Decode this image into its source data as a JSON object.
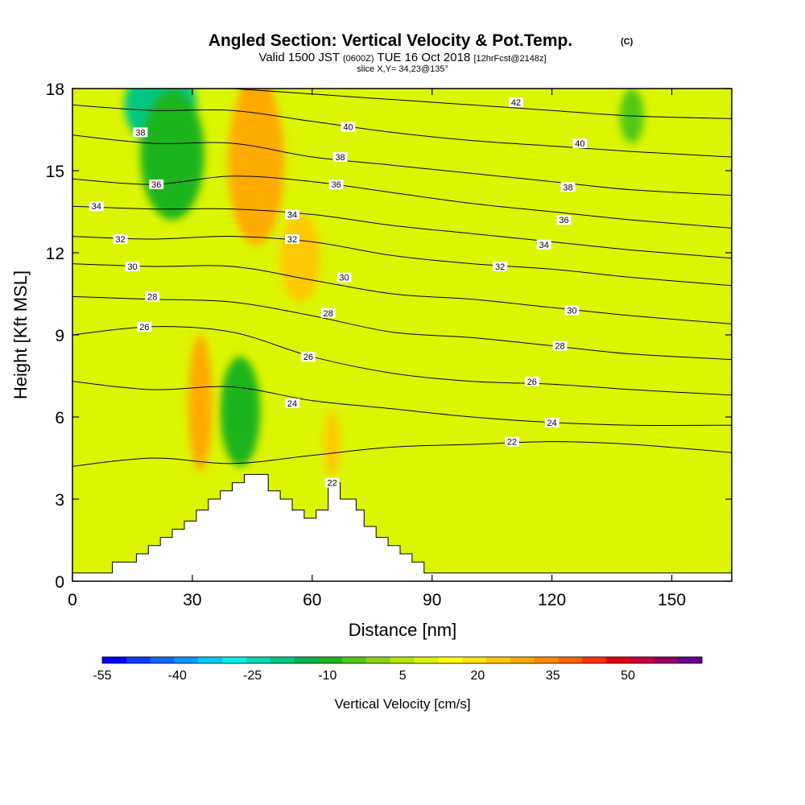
{
  "figure": {
    "title": "Angled Section: Vertical Velocity & Pot.Temp.",
    "title_suffix": "(C)",
    "valid_prefix": "Valid 1500 JST",
    "valid_z": "(0600Z)",
    "valid_date": "TUE 16 Oct 2018",
    "forecast": "[12hrFcst@2148z]",
    "slice": "slice X,Y= 34,23@135°"
  },
  "chart_data": {
    "type": "heatmap",
    "xlabel": "Distance [nm]",
    "ylabel": "Height [Kft MSL]",
    "xlim": [
      0,
      165
    ],
    "ylim": [
      0,
      18
    ],
    "xticks": [
      0,
      30,
      60,
      90,
      120,
      150
    ],
    "yticks": [
      0,
      3,
      6,
      9,
      12,
      15,
      18
    ],
    "colorbar": {
      "label": "Vertical Velocity [cm/s]",
      "tick_labels": [
        "-55",
        "-40",
        "-25",
        "-10",
        "5",
        "20",
        "35",
        "50"
      ],
      "levels": [
        -55,
        -50,
        -45,
        -40,
        -35,
        -30,
        -25,
        -20,
        -15,
        -10,
        -5,
        0,
        5,
        10,
        15,
        20,
        25,
        30,
        35,
        40,
        45,
        50,
        55,
        60
      ],
      "colors": [
        "#0000ff",
        "#0a3cff",
        "#1464ff",
        "#0a96ff",
        "#00c8ff",
        "#00f0e6",
        "#00dcb4",
        "#00c882",
        "#00b450",
        "#1eb41e",
        "#50c814",
        "#8cd214",
        "#b4e600",
        "#dcf500",
        "#ffff00",
        "#ffe600",
        "#ffc800",
        "#ffaa00",
        "#ff8c00",
        "#ff6400",
        "#ff3200",
        "#e60014",
        "#c8003c",
        "#960064",
        "#64008c"
      ]
    },
    "theta_contours": [
      {
        "value": 22,
        "x": [
          0,
          20,
          40,
          60,
          80,
          100,
          120,
          140,
          165
        ],
        "y": [
          4.2,
          4.5,
          4.3,
          4.6,
          4.9,
          5.0,
          5.1,
          5.0,
          4.7
        ],
        "labels": [
          {
            "x": 65,
            "y": 3.6
          },
          {
            "x": 110,
            "y": 5.1
          }
        ]
      },
      {
        "value": 24,
        "x": [
          0,
          20,
          40,
          60,
          80,
          100,
          120,
          140,
          165
        ],
        "y": [
          7.3,
          7.0,
          7.1,
          6.6,
          6.3,
          6.0,
          5.8,
          5.7,
          5.7
        ],
        "labels": [
          {
            "x": 55,
            "y": 6.5
          },
          {
            "x": 120,
            "y": 5.8
          }
        ]
      },
      {
        "value": 26,
        "x": [
          0,
          20,
          40,
          60,
          80,
          100,
          120,
          140,
          165
        ],
        "y": [
          9.0,
          9.3,
          9.1,
          8.2,
          7.6,
          7.3,
          7.2,
          7.0,
          6.8
        ],
        "labels": [
          {
            "x": 18,
            "y": 9.3
          },
          {
            "x": 59,
            "y": 8.2
          },
          {
            "x": 115,
            "y": 7.3
          }
        ]
      },
      {
        "value": 28,
        "x": [
          0,
          20,
          40,
          60,
          80,
          100,
          120,
          140,
          165
        ],
        "y": [
          10.4,
          10.3,
          10.2,
          9.7,
          9.1,
          8.9,
          8.6,
          8.3,
          8.1
        ],
        "labels": [
          {
            "x": 20,
            "y": 10.4
          },
          {
            "x": 64,
            "y": 9.8
          },
          {
            "x": 122,
            "y": 8.6
          }
        ]
      },
      {
        "value": 30,
        "x": [
          0,
          20,
          40,
          60,
          80,
          100,
          120,
          140,
          165
        ],
        "y": [
          11.6,
          11.5,
          11.5,
          11.0,
          10.5,
          10.3,
          10.0,
          9.7,
          9.4
        ],
        "labels": [
          {
            "x": 15,
            "y": 11.5
          },
          {
            "x": 68,
            "y": 11.1
          },
          {
            "x": 125,
            "y": 9.9
          }
        ]
      },
      {
        "value": 32,
        "x": [
          0,
          20,
          40,
          60,
          80,
          100,
          120,
          140,
          165
        ],
        "y": [
          12.6,
          12.5,
          12.6,
          12.4,
          11.9,
          11.6,
          11.4,
          11.1,
          10.8
        ],
        "labels": [
          {
            "x": 12,
            "y": 12.5
          },
          {
            "x": 55,
            "y": 12.5
          },
          {
            "x": 107,
            "y": 11.5
          }
        ]
      },
      {
        "value": 34,
        "x": [
          0,
          20,
          40,
          60,
          80,
          100,
          120,
          140,
          165
        ],
        "y": [
          13.7,
          13.6,
          13.6,
          13.4,
          13.0,
          12.7,
          12.4,
          12.1,
          11.8
        ],
        "labels": [
          {
            "x": 6,
            "y": 13.7
          },
          {
            "x": 55,
            "y": 13.4
          },
          {
            "x": 118,
            "y": 12.3
          }
        ]
      },
      {
        "value": 36,
        "x": [
          0,
          20,
          40,
          60,
          80,
          100,
          120,
          140,
          165
        ],
        "y": [
          14.7,
          14.5,
          14.8,
          14.6,
          14.2,
          13.8,
          13.5,
          13.2,
          12.9
        ],
        "labels": [
          {
            "x": 21,
            "y": 14.5
          },
          {
            "x": 66,
            "y": 14.5
          },
          {
            "x": 123,
            "y": 13.2
          }
        ]
      },
      {
        "value": 38,
        "x": [
          0,
          20,
          40,
          60,
          80,
          100,
          120,
          140,
          165
        ],
        "y": [
          16.3,
          16.0,
          16.0,
          15.5,
          15.2,
          14.9,
          14.6,
          14.3,
          14.1
        ],
        "labels": [
          {
            "x": 17,
            "y": 16.4
          },
          {
            "x": 67,
            "y": 15.5
          },
          {
            "x": 124,
            "y": 14.4
          }
        ]
      },
      {
        "value": 40,
        "x": [
          0,
          20,
          40,
          60,
          80,
          100,
          120,
          140,
          165
        ],
        "y": [
          17.4,
          17.2,
          17.2,
          16.8,
          16.4,
          16.1,
          15.9,
          15.7,
          15.5
        ],
        "labels": [
          {
            "x": 69,
            "y": 16.6
          },
          {
            "x": 127,
            "y": 16.0
          }
        ]
      },
      {
        "value": 42,
        "x": [
          40,
          60,
          80,
          100,
          120,
          140,
          165
        ],
        "y": [
          18.0,
          17.8,
          17.6,
          17.4,
          17.2,
          17.0,
          16.9
        ],
        "labels": [
          {
            "x": 111,
            "y": 17.5
          }
        ]
      }
    ],
    "terrain": {
      "x": [
        0,
        10,
        10,
        16,
        16,
        19,
        19,
        22,
        22,
        25,
        25,
        28,
        28,
        31,
        31,
        34,
        34,
        37,
        37,
        40,
        40,
        43,
        43,
        49,
        49,
        52,
        52,
        55,
        55,
        58,
        58,
        61,
        61,
        64,
        64,
        67,
        67,
        71,
        71,
        73,
        73,
        76,
        76,
        79,
        79,
        82,
        82,
        85,
        85,
        88,
        88,
        91,
        91,
        165
      ],
      "y": [
        0.3,
        0.3,
        0.7,
        0.7,
        1.0,
        1.0,
        1.3,
        1.3,
        1.6,
        1.6,
        1.9,
        1.9,
        2.2,
        2.2,
        2.6,
        2.6,
        3.0,
        3.0,
        3.3,
        3.3,
        3.6,
        3.6,
        3.9,
        3.9,
        3.3,
        3.3,
        3.0,
        3.0,
        2.6,
        2.6,
        2.3,
        2.3,
        2.6,
        2.6,
        3.6,
        3.6,
        3.0,
        3.0,
        2.6,
        2.6,
        2.0,
        2.0,
        1.6,
        1.6,
        1.3,
        1.3,
        1.0,
        1.0,
        0.7,
        0.7,
        0.3,
        0.3,
        0.3,
        0.3
      ]
    },
    "velocity_features": [
      {
        "x": 22,
        "y": 17.4,
        "rx": 9,
        "ry": 1.5,
        "value": -25
      },
      {
        "x": 25,
        "y": 15.6,
        "rx": 8,
        "ry": 2.4,
        "value": -15
      },
      {
        "x": 46,
        "y": 16.5,
        "rx": 5,
        "ry": 2.2,
        "value": 40
      },
      {
        "x": 46,
        "y": 15.3,
        "rx": 7,
        "ry": 3.0,
        "value": 25
      },
      {
        "x": 57,
        "y": 11.8,
        "rx": 5,
        "ry": 1.6,
        "value": 20
      },
      {
        "x": 32,
        "y": 6.5,
        "rx": 3,
        "ry": 2.5,
        "value": 25
      },
      {
        "x": 42,
        "y": 6.2,
        "rx": 5,
        "ry": 2.0,
        "value": -15
      },
      {
        "x": 65,
        "y": 5.0,
        "rx": 2,
        "ry": 1.2,
        "value": 20
      },
      {
        "x": 110,
        "y": 8.5,
        "rx": 8,
        "ry": 1.5,
        "value": 5
      },
      {
        "x": 160,
        "y": 12.0,
        "rx": 5,
        "ry": 3.5,
        "value": 5
      },
      {
        "x": 140,
        "y": 17.0,
        "rx": 3,
        "ry": 1.0,
        "value": -10
      }
    ]
  }
}
